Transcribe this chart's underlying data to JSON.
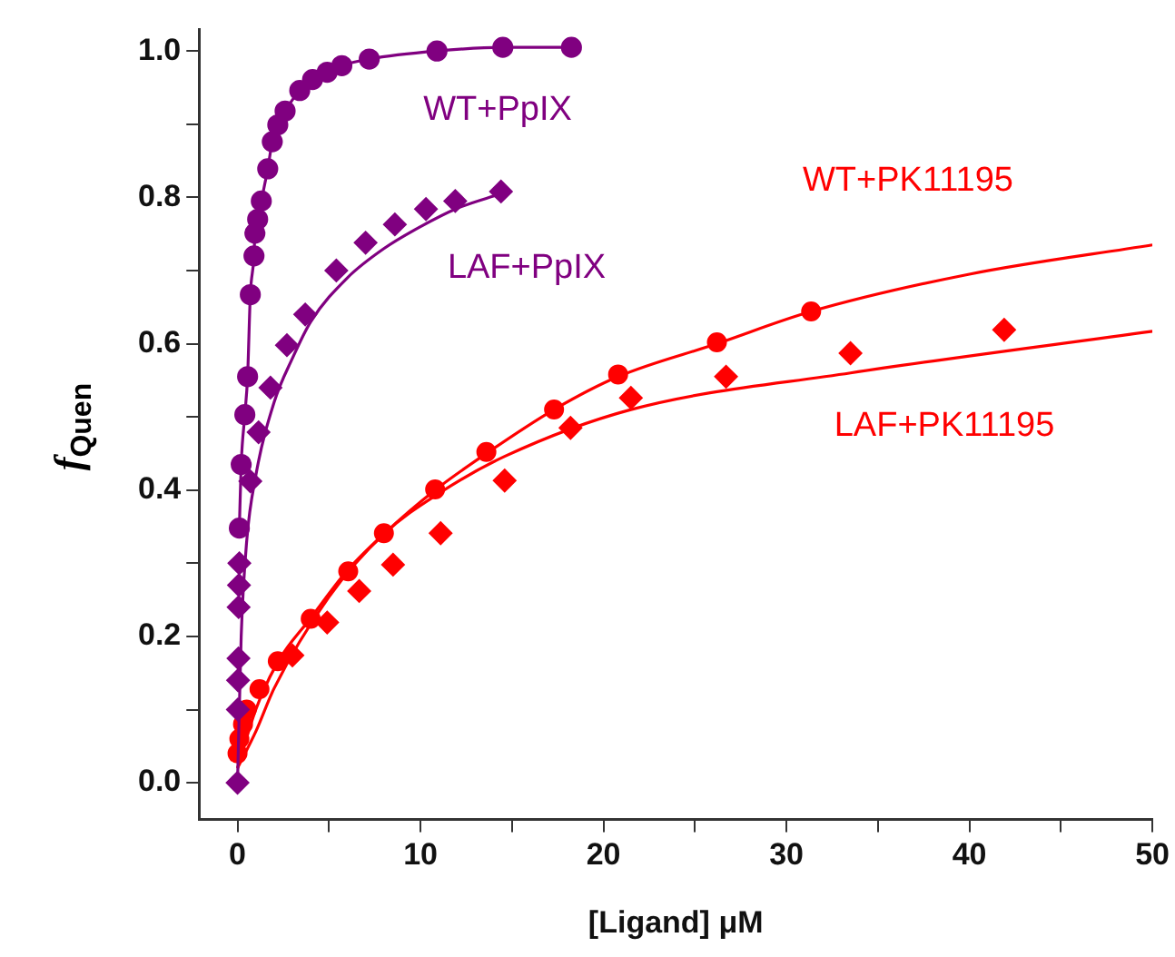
{
  "chart_data": {
    "type": "scatter",
    "xlabel": "[Ligand] μM",
    "ylabel": "f$_{Quen}$",
    "xlim": [
      -2.1,
      50
    ],
    "ylim": [
      -0.05,
      1.03
    ],
    "xticks": [
      0,
      {
        "value": 5,
        "label": null
      },
      10,
      {
        "value": 15,
        "label": null
      },
      20,
      {
        "value": 25,
        "label": null
      },
      30,
      {
        "value": 35,
        "label": null
      },
      40,
      {
        "value": 45,
        "label": null
      },
      50
    ],
    "yticks": [
      "0.0",
      {
        "value": 0.1,
        "label": null
      },
      {
        "value": 0.2,
        "label": "0.2"
      },
      {
        "value": 0.3,
        "label": null
      },
      {
        "value": 0.4,
        "label": "0.4"
      },
      {
        "value": 0.5,
        "label": null
      },
      {
        "value": 0.6,
        "label": "0.6"
      },
      {
        "value": 0.7,
        "label": null
      },
      {
        "value": 0.8,
        "label": "0.8"
      },
      {
        "value": 0.9,
        "label": null
      },
      {
        "value": 1.0,
        "label": "1.0"
      }
    ],
    "grid": false,
    "legend": false,
    "series": [
      {
        "type": "line",
        "name": "WT+PpIX",
        "marker": "circle",
        "color": "#800080",
        "x": [
          0.1,
          0.2,
          0.4,
          0.55,
          0.7,
          0.9,
          0.95,
          1.1,
          1.3,
          1.65,
          1.9,
          2.2,
          2.6,
          3.4,
          4.1,
          4.9,
          5.7,
          7.2,
          10.9,
          14.5,
          18.25
        ],
        "values": [
          0.348,
          0.435,
          0.503,
          0.555,
          0.667,
          0.72,
          0.751,
          0.77,
          0.795,
          0.839,
          0.876,
          0.899,
          0.918,
          0.946,
          0.961,
          0.971,
          0.98,
          0.989,
          1.0,
          1.005,
          1.005
        ]
      },
      {
        "name": "LAF+PpIX",
        "marker": "diamond",
        "color": "#800080",
        "x": [
          0,
          0.02,
          0.03,
          0.05,
          0.06,
          0.08,
          0.1,
          0.7,
          1.15,
          1.8,
          2.7,
          3.7,
          5.4,
          7.0,
          8.6,
          10.3,
          11.9,
          14.4
        ],
        "values": [
          0,
          0.1,
          0.14,
          0.17,
          0.24,
          0.27,
          0.3,
          0.412,
          0.479,
          0.54,
          0.598,
          0.64,
          0.7,
          0.738,
          0.763,
          0.784,
          0.795,
          0.808
        ]
      },
      {
        "type": "line",
        "marker": "none",
        "color": "#800080",
        "x": [
          0,
          0.2,
          0.5,
          1,
          2,
          3,
          4,
          6,
          8,
          10,
          12,
          14.4
        ],
        "values": [
          0,
          0.2,
          0.33,
          0.42,
          0.52,
          0.58,
          0.63,
          0.69,
          0.73,
          0.76,
          0.785,
          0.805
        ]
      },
      {
        "name": "WT+PK11195",
        "marker": "circle",
        "color": "#ff0000",
        "x": [
          0,
          0.1,
          0.3,
          0.5,
          1.2,
          2.2,
          4.0,
          6.05,
          8.0,
          10.8,
          13.6,
          17.3,
          20.8,
          26.2,
          31.35
        ],
        "values": [
          0.04,
          0.06,
          0.08,
          0.1,
          0.128,
          0.166,
          0.224,
          0.289,
          0.341,
          0.401,
          0.452,
          0.51,
          0.558,
          0.602,
          0.644
        ]
      },
      {
        "name": "LAF+PK11195",
        "marker": "diamond",
        "color": "#ff0000",
        "x": [
          3.0,
          4.9,
          6.65,
          8.5,
          11.1,
          14.6,
          18.2,
          21.5,
          26.7,
          33.5,
          41.9
        ],
        "values": [
          0.174,
          0.219,
          0.262,
          0.298,
          0.341,
          0.413,
          0.485,
          0.526,
          0.555,
          0.587,
          0.619
        ]
      },
      {
        "type": "line",
        "marker": "none",
        "color": "#ff0000",
        "x": [
          0,
          1,
          2.2,
          4,
          6,
          8,
          10.8,
          13.6,
          17.3,
          20.8,
          26.2,
          31.35,
          40,
          50
        ],
        "values": [
          0.02,
          0.1,
          0.165,
          0.225,
          0.29,
          0.34,
          0.4,
          0.45,
          0.51,
          0.555,
          0.6,
          0.644,
          0.695,
          0.735
        ]
      },
      {
        "type": "line",
        "marker": "none",
        "color": "#ff0000",
        "x": [
          0,
          1,
          2,
          5,
          8,
          11.1,
          14.6,
          21.5,
          33.5,
          50
        ],
        "values": [
          0.02,
          0.07,
          0.129,
          0.254,
          0.34,
          0.397,
          0.446,
          0.51,
          0.56,
          0.617
        ]
      }
    ]
  }
}
